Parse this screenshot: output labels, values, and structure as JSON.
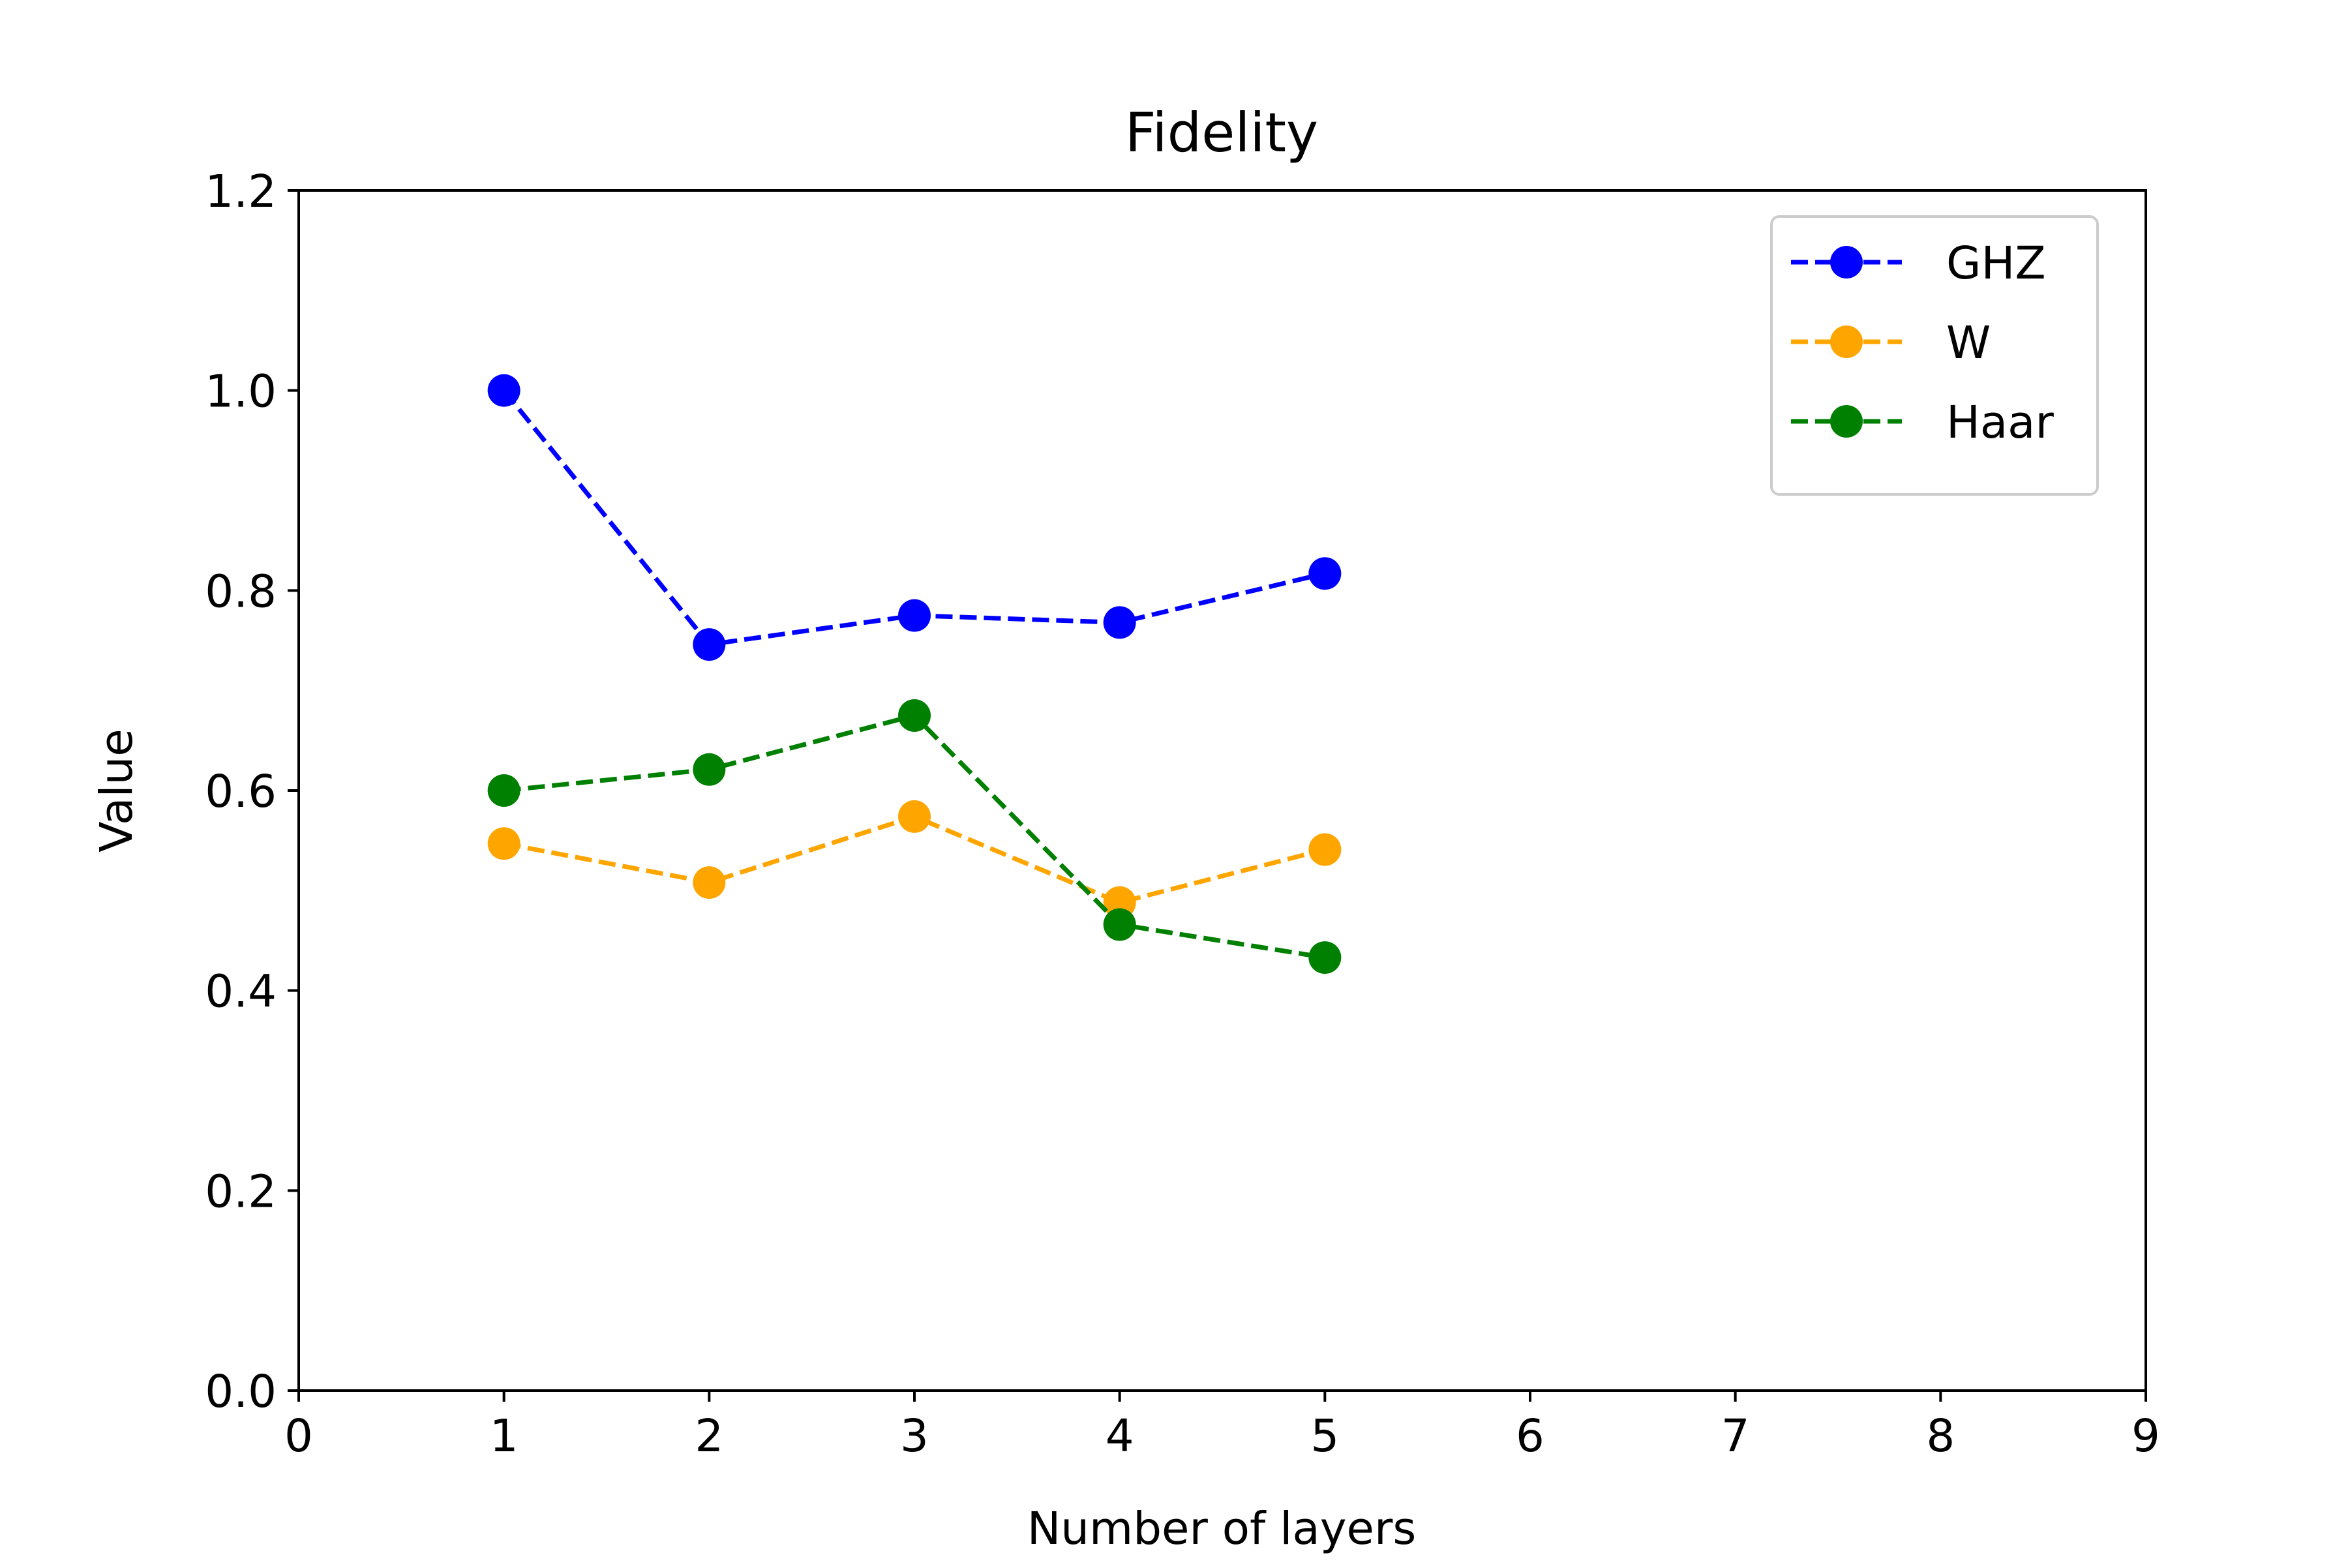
{
  "chart_data": {
    "type": "line",
    "title": "Fidelity",
    "xlabel": "Number of layers",
    "ylabel": "Value",
    "xlim": [
      0,
      9
    ],
    "ylim": [
      0,
      1.2
    ],
    "xticks": [
      "0",
      "1",
      "2",
      "3",
      "4",
      "5",
      "6",
      "7",
      "8",
      "9"
    ],
    "yticks": [
      "0.0",
      "0.2",
      "0.4",
      "0.6",
      "0.8",
      "1.0",
      "1.2"
    ],
    "grid": false,
    "legend_position": "top-right",
    "line_style": "dashed",
    "marker": "circle",
    "series": [
      {
        "name": "GHZ",
        "color": "#0000ff",
        "x": [
          1,
          2,
          3,
          4,
          5
        ],
        "y": [
          1.0,
          0.746,
          0.775,
          0.768,
          0.817
        ]
      },
      {
        "name": "W",
        "color": "#ffa500",
        "x": [
          1,
          2,
          3,
          4,
          5
        ],
        "y": [
          0.547,
          0.508,
          0.574,
          0.488,
          0.541
        ]
      },
      {
        "name": "Haar",
        "color": "#008000",
        "x": [
          1,
          2,
          3,
          4,
          5
        ],
        "y": [
          0.6,
          0.621,
          0.675,
          0.466,
          0.433
        ]
      }
    ]
  }
}
